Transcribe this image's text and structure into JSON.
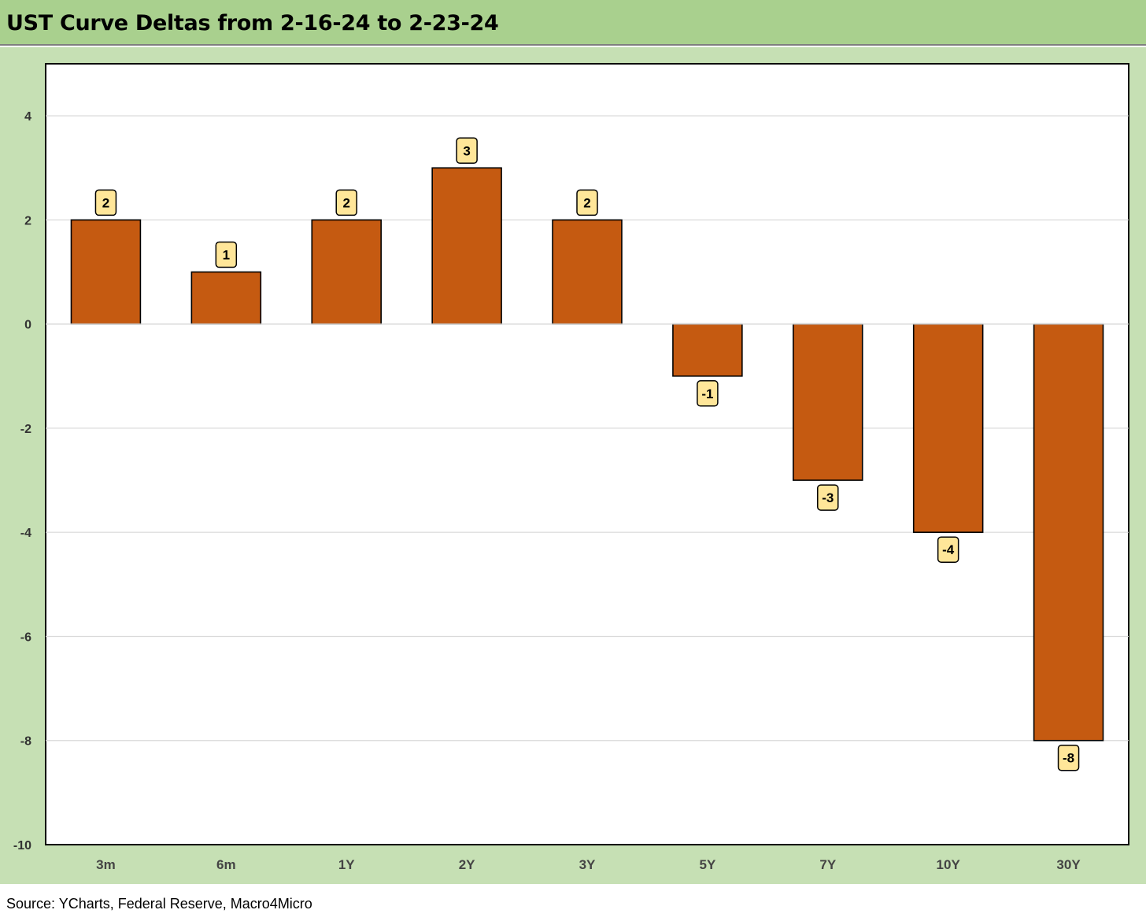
{
  "title": "UST Curve Deltas from 2-16-24 to 2-23-24",
  "source": "Source: YCharts, Federal Reserve, Macro4Micro",
  "colors": {
    "bar": "#c55a11",
    "label_fill": "#ffe699",
    "header_bg": "#a9d08e",
    "chart_bg": "#c6e0b4"
  },
  "chart_data": {
    "type": "bar",
    "categories": [
      "3m",
      "6m",
      "1Y",
      "2Y",
      "3Y",
      "5Y",
      "7Y",
      "10Y",
      "30Y"
    ],
    "values": [
      2,
      1,
      2,
      3,
      2,
      -1,
      -3,
      -4,
      -8
    ],
    "ylim": [
      -10,
      5
    ],
    "yticks": [
      4,
      2,
      0,
      -2,
      -4,
      -6,
      -8,
      -10
    ],
    "grid": true,
    "data_labels": true
  }
}
